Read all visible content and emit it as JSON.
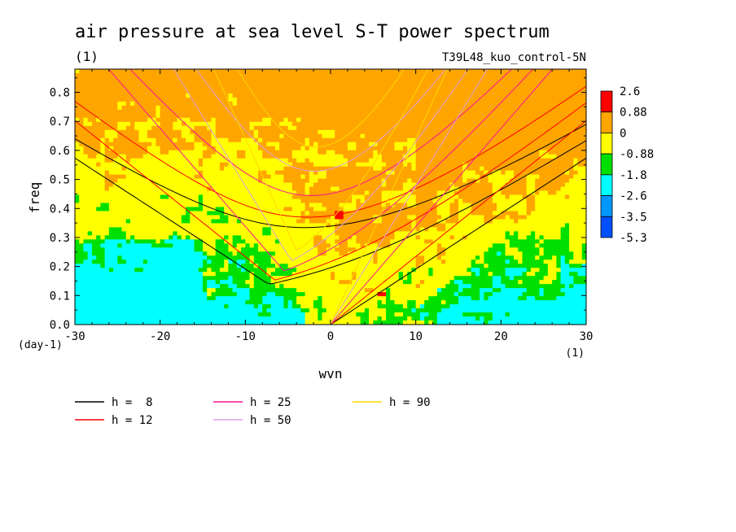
{
  "chart_data": {
    "type": "heatmap",
    "title": "air pressure at sea level S-T power spectrum",
    "title_units": "(1)",
    "subtitle": "T39L48_kuo_control-5N",
    "xlabel": "wvn",
    "ylabel": "freq",
    "x_units": "(1)",
    "y_units": "(day-1)",
    "xlim": [
      -30,
      30
    ],
    "ylim": [
      0,
      0.88
    ],
    "x_ticks": [
      -30,
      -20,
      -10,
      0,
      10,
      20,
      30
    ],
    "y_ticks": [
      0.0,
      0.1,
      0.2,
      0.3,
      0.4,
      0.5,
      0.6,
      0.7,
      0.8
    ],
    "colorbar": {
      "labels": [
        "2.6",
        "0.88",
        "0",
        "-0.88",
        "-1.8",
        "-2.6",
        "-3.5",
        "-5.3"
      ],
      "colors": [
        "#ff0000",
        "#ffa500",
        "#ffff00",
        "#00e000",
        "#00ffff",
        "#0096ff",
        "#0050ff"
      ]
    },
    "colors": {
      "red": "#ff0000",
      "orange": "#ffa500",
      "yellow": "#ffff00",
      "green": "#00e000",
      "cyan": "#00ffff",
      "blue": "#0096ff"
    },
    "series": [
      {
        "name": "h =  8",
        "color": "#000000"
      },
      {
        "name": "h = 12",
        "color": "#ff0000"
      },
      {
        "name": "h = 25",
        "color": "#ff1493"
      },
      {
        "name": "h = 50",
        "color": "#dda0dd"
      },
      {
        "name": "h = 90",
        "color": "#ffd700"
      }
    ]
  }
}
